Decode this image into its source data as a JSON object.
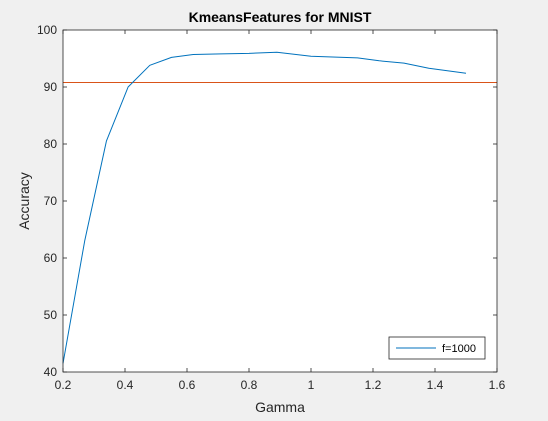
{
  "window": {
    "background": "#f0f0f0"
  },
  "chart_data": {
    "type": "line",
    "title": "KmeansFeatures for MNIST",
    "xlabel": "Gamma",
    "ylabel": "Accuracy",
    "xlim": [
      0.2,
      1.6
    ],
    "ylim": [
      40,
      100
    ],
    "xticks": [
      "0.2",
      "0.4",
      "0.6",
      "0.8",
      "1",
      "1.2",
      "1.4",
      "1.6"
    ],
    "yticks": [
      "40",
      "50",
      "60",
      "70",
      "80",
      "90",
      "100"
    ],
    "grid": false,
    "legend_position": "bottom-right",
    "series": [
      {
        "name": "f=1000",
        "color": "#0072bd",
        "x": [
          0.2,
          0.27,
          0.34,
          0.41,
          0.48,
          0.55,
          0.62,
          0.71,
          0.8,
          0.89,
          1.0,
          1.15,
          1.22,
          1.3,
          1.38,
          1.5
        ],
        "y": [
          41.5,
          63,
          80.5,
          90,
          93.8,
          95.2,
          95.7,
          95.8,
          95.9,
          96.1,
          95.4,
          95.1,
          94.6,
          94.2,
          93.3,
          92.4
        ]
      }
    ],
    "reference_lines": [
      {
        "orientation": "horizontal",
        "y": 90.8,
        "color": "#d95319"
      }
    ]
  }
}
